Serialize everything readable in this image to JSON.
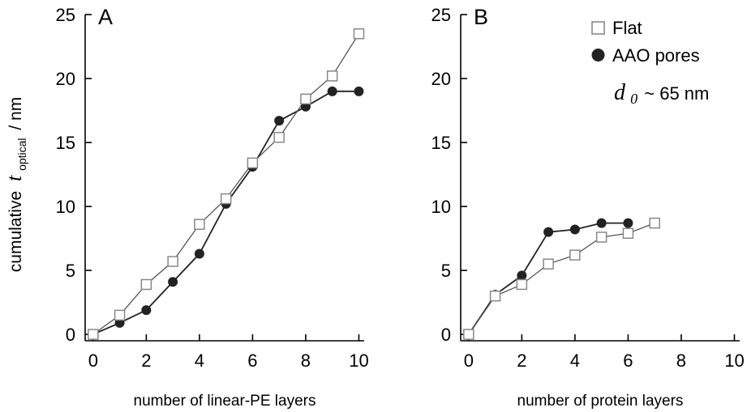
{
  "figure": {
    "ylabel_prefix": "cumulative",
    "ylabel_symbol": "t",
    "ylabel_subscript": "optical",
    "ylabel_suffix": "/ nm",
    "legend": {
      "flat_label": "Flat",
      "aao_label": "AAO pores",
      "d0_symbol": "d",
      "d0_subscript": "0",
      "d0_value": "~ 65 nm"
    },
    "colors": {
      "flat": "#888888",
      "aao": "#222222",
      "flat_line": "#555555",
      "aao_line": "#222222"
    }
  },
  "chart_data": [
    {
      "type": "line",
      "panel": "A",
      "xlabel": "number of linear-PE layers",
      "ylabel": "cumulative t optical / nm",
      "xlim": [
        -0.3,
        10.2
      ],
      "ylim": [
        -0.5,
        25
      ],
      "xticks": [
        0,
        2,
        4,
        6,
        8,
        10
      ],
      "yticks": [
        0,
        5,
        10,
        15,
        20,
        25
      ],
      "series": [
        {
          "name": "Flat",
          "marker": "open-square",
          "x": [
            0,
            1,
            2,
            3,
            4,
            5,
            6,
            7,
            8,
            9,
            10
          ],
          "y": [
            0,
            1.5,
            3.9,
            5.7,
            8.6,
            10.6,
            13.4,
            15.4,
            18.4,
            20.2,
            23.5
          ]
        },
        {
          "name": "AAO pores",
          "marker": "filled-circle",
          "x": [
            0,
            1,
            2,
            3,
            4,
            5,
            6,
            7,
            8,
            9,
            10
          ],
          "y": [
            0,
            0.9,
            1.9,
            4.1,
            6.3,
            10.2,
            13.1,
            16.7,
            17.8,
            19.0,
            19.0
          ]
        }
      ]
    },
    {
      "type": "line",
      "panel": "B",
      "xlabel": "number of protein layers",
      "ylabel": "cumulative t optical / nm",
      "xlim": [
        -0.3,
        10.2
      ],
      "ylim": [
        -0.5,
        25
      ],
      "xticks": [
        0,
        2,
        4,
        6,
        8,
        10
      ],
      "yticks": [
        0,
        5,
        10,
        15,
        20,
        25
      ],
      "series": [
        {
          "name": "Flat",
          "marker": "open-square",
          "x": [
            0,
            1,
            2,
            3,
            4,
            5,
            6,
            7
          ],
          "y": [
            0,
            3.0,
            3.9,
            5.5,
            6.2,
            7.6,
            7.9,
            8.7
          ]
        },
        {
          "name": "AAO pores",
          "marker": "filled-circle",
          "x": [
            0,
            1,
            2,
            3,
            4,
            5,
            6
          ],
          "y": [
            0,
            3.1,
            4.6,
            8.0,
            8.2,
            8.7,
            8.7
          ]
        }
      ]
    }
  ]
}
